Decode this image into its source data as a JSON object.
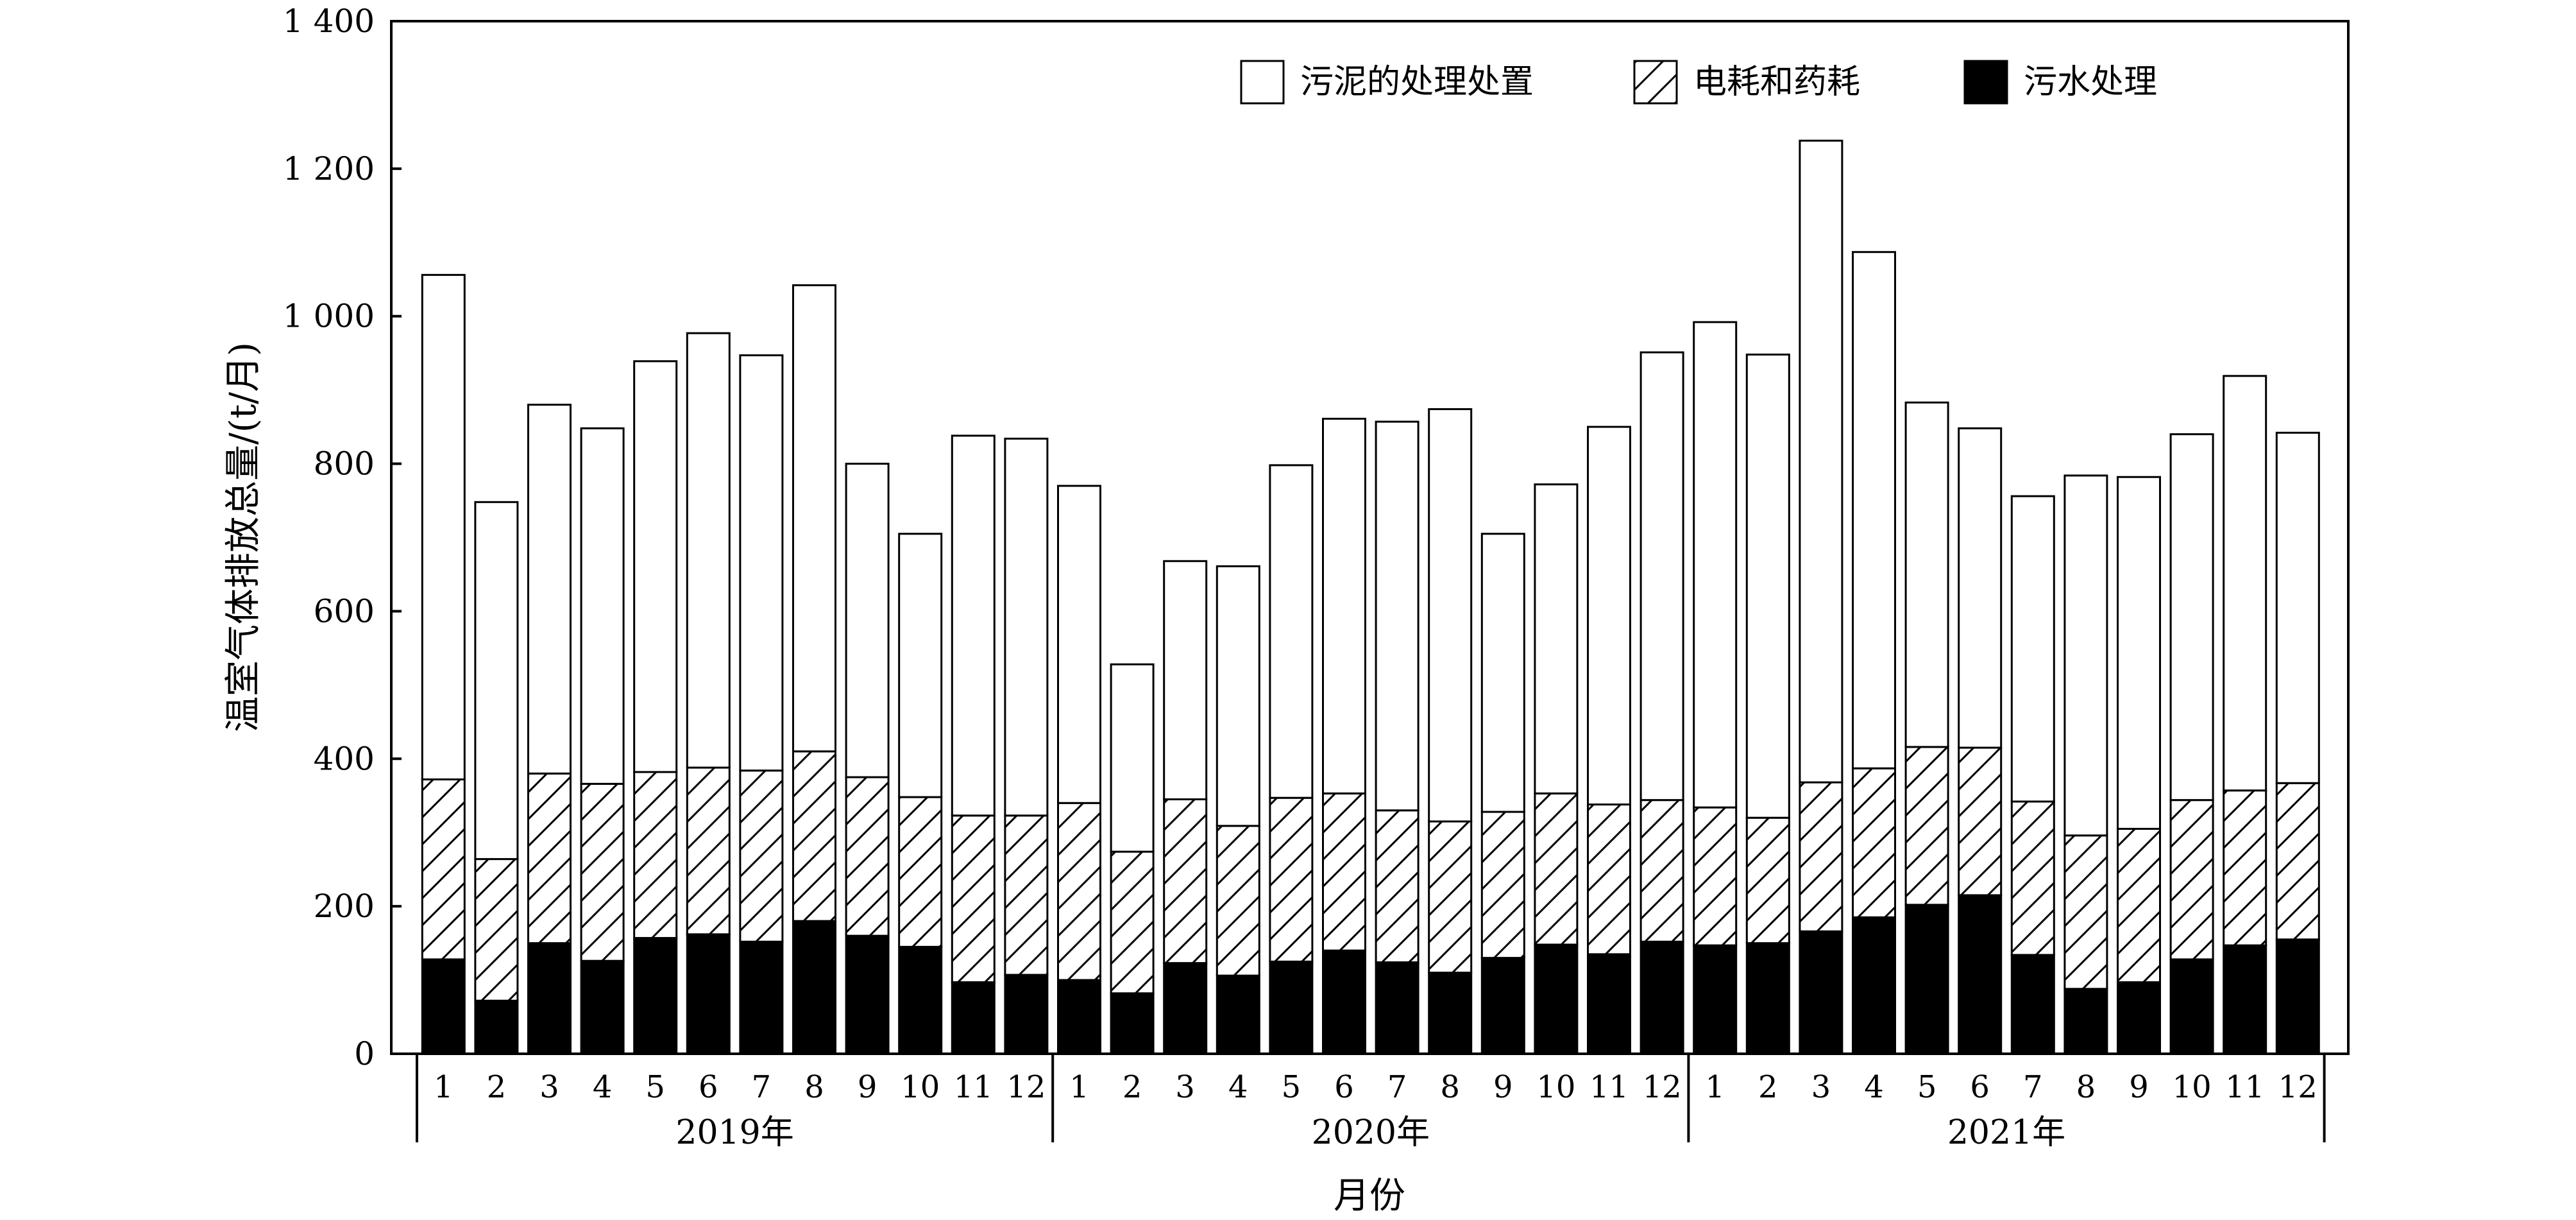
{
  "chart_data": {
    "type": "bar",
    "stacked": true,
    "ylabel": "温室气体排放总量/(t/月)",
    "xlabel": "月份",
    "ylim": [
      0,
      1400
    ],
    "yticks": [
      0,
      200,
      400,
      600,
      800,
      1000,
      1200,
      1400
    ],
    "ytick_labels": [
      "0",
      "200",
      "400",
      "600",
      "800",
      "1 000",
      "1 200",
      "1 400"
    ],
    "grid": false,
    "legend_position": "top-right",
    "categories": [
      "1",
      "2",
      "3",
      "4",
      "5",
      "6",
      "7",
      "8",
      "9",
      "10",
      "11",
      "12",
      "1",
      "2",
      "3",
      "4",
      "5",
      "6",
      "7",
      "8",
      "9",
      "10",
      "11",
      "12",
      "1",
      "2",
      "3",
      "4",
      "5",
      "6",
      "7",
      "8",
      "9",
      "10",
      "11",
      "12"
    ],
    "groups": [
      {
        "label": "2019年",
        "count": 12
      },
      {
        "label": "2020年",
        "count": 12
      },
      {
        "label": "2021年",
        "count": 12
      }
    ],
    "series": [
      {
        "name": "污水处理",
        "fill": "solid",
        "values": [
          128,
          72,
          150,
          126,
          157,
          162,
          152,
          180,
          160,
          145,
          97,
          107,
          100,
          82,
          123,
          106,
          125,
          140,
          124,
          110,
          130,
          148,
          135,
          152,
          147,
          150,
          166,
          185,
          202,
          215,
          134,
          88,
          97,
          128,
          147,
          155
        ]
      },
      {
        "name": "电耗和药耗",
        "fill": "hatched",
        "values": [
          244,
          192,
          230,
          240,
          225,
          226,
          232,
          230,
          215,
          203,
          226,
          216,
          240,
          192,
          222,
          203,
          222,
          213,
          206,
          205,
          198,
          205,
          203,
          192,
          187,
          170,
          202,
          202,
          214,
          200,
          208,
          208,
          208,
          216,
          210,
          212
        ]
      },
      {
        "name": "污泥的处理处置",
        "fill": "white",
        "values": [
          684,
          484,
          500,
          482,
          557,
          589,
          563,
          632,
          425,
          357,
          515,
          511,
          430,
          254,
          323,
          352,
          451,
          508,
          527,
          559,
          377,
          419,
          512,
          607,
          658,
          628,
          870,
          700,
          467,
          433,
          414,
          488,
          477,
          496,
          562,
          475
        ]
      }
    ],
    "colors": {
      "line": "#000000",
      "solid": "#000000",
      "background": "#ffffff"
    }
  }
}
